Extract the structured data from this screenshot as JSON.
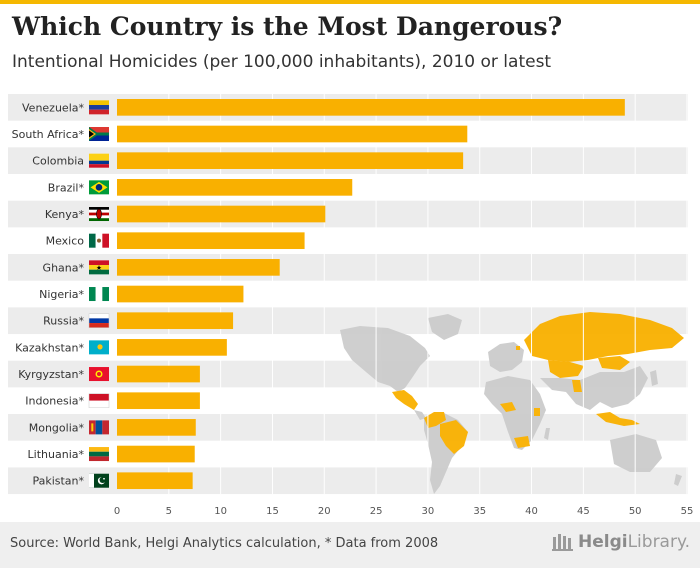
{
  "header": {
    "title": "Which Country is the Most Dangerous?",
    "subtitle": "Intentional Homicides (per 100,000 inhabitants), 2010 or latest"
  },
  "footer": {
    "source": "Source: World Bank, Helgi Analytics calculation, * Data from 2008",
    "brand_part1": "Helgi",
    "brand_part2": "Library."
  },
  "colors": {
    "bar": "#f9b000",
    "stripe": "#ececec",
    "map_gray": "#cccccc",
    "map_highlight": "#f9b000",
    "accent": "#f5b800"
  },
  "chart_data": {
    "type": "bar",
    "orientation": "horizontal",
    "title": "Which Country is the Most Dangerous?",
    "subtitle": "Intentional Homicides (per 100,000 inhabitants), 2010 or latest",
    "categories": [
      "Venezuela*",
      "South Africa*",
      "Colombia",
      "Brazil*",
      "Kenya*",
      "Mexico",
      "Ghana*",
      "Nigeria*",
      "Russia*",
      "Kazakhstan*",
      "Kyrgyzstan*",
      "Indonesia*",
      "Mongolia*",
      "Lithuania*",
      "Pakistan*"
    ],
    "values": [
      49.0,
      33.8,
      33.4,
      22.7,
      20.1,
      18.1,
      15.7,
      12.2,
      11.2,
      10.6,
      8.0,
      8.0,
      7.6,
      7.5,
      7.3
    ],
    "xlim": [
      0,
      55
    ],
    "xticks": [
      0,
      5,
      10,
      15,
      20,
      25,
      30,
      35,
      40,
      45,
      50,
      55
    ],
    "xlabel": "",
    "ylabel": "",
    "flags": [
      "venezuela-flag-icon",
      "south-africa-flag-icon",
      "colombia-flag-icon",
      "brazil-flag-icon",
      "kenya-flag-icon",
      "mexico-flag-icon",
      "ghana-flag-icon",
      "nigeria-flag-icon",
      "russia-flag-icon",
      "kazakhstan-flag-icon",
      "kyrgyzstan-flag-icon",
      "indonesia-flag-icon",
      "mongolia-flag-icon",
      "lithuania-flag-icon",
      "pakistan-flag-icon"
    ]
  }
}
